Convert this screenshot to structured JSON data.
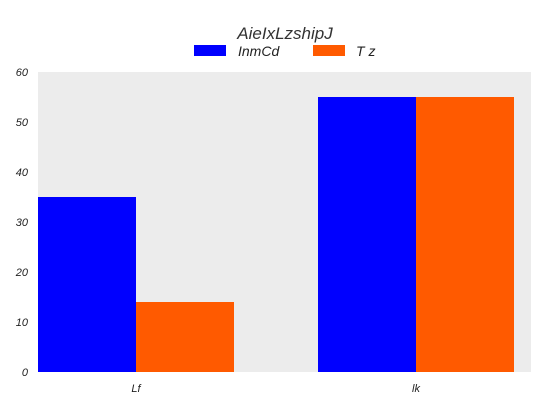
{
  "chart_data": {
    "type": "bar",
    "title": "AieIxLzshipJ",
    "xlabel": "",
    "ylabel": "",
    "categories": [
      "Lf",
      "lk"
    ],
    "series": [
      {
        "name": "InmCd",
        "values": [
          35,
          55
        ],
        "color": "#0000ff"
      },
      {
        "name": "T z",
        "values": [
          14,
          55
        ],
        "color": "#ff5a00"
      }
    ],
    "ylim": [
      0,
      60
    ],
    "yticks": [
      0,
      10,
      20,
      30,
      40,
      50,
      60
    ],
    "grid": false,
    "legend_position": "top-center",
    "plot_background": "#ececec"
  }
}
